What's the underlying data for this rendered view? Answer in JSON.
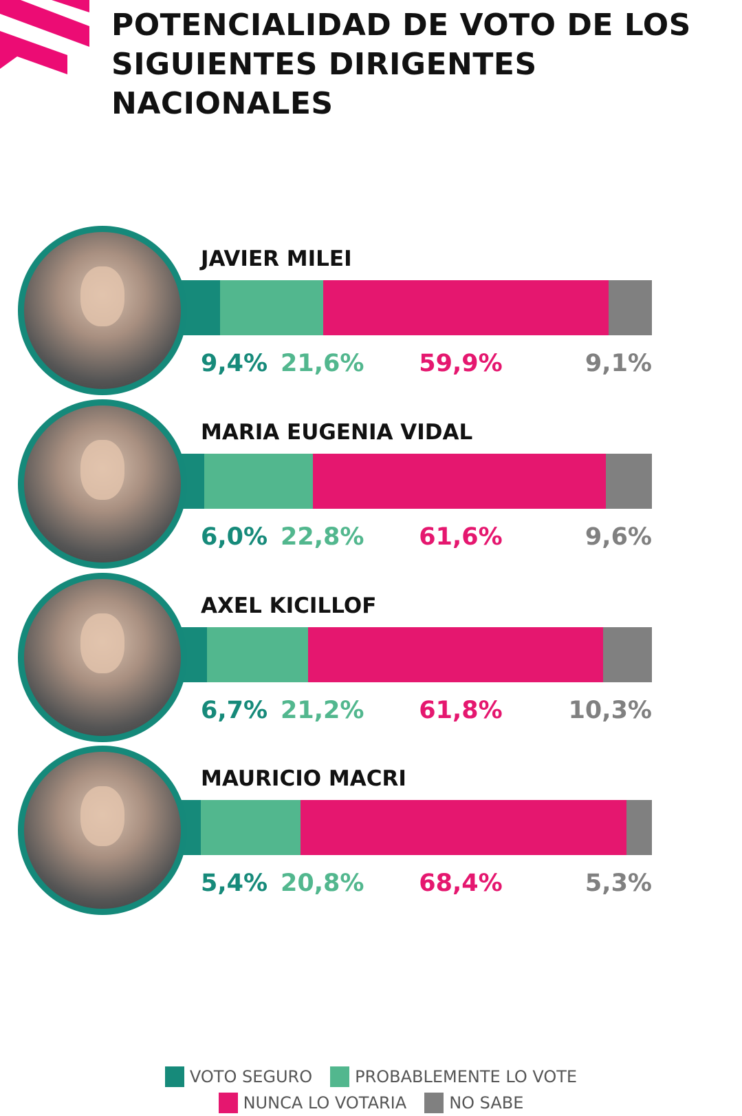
{
  "title": "POTENCIALIDAD DE VOTO DE LOS SIGUIENTES DIRIGENTES NACIONALES",
  "colors": {
    "voto_seguro": "#168a7a",
    "probablemente": "#52b78e",
    "nunca": "#e5176f",
    "no_sabe": "#808080",
    "brand": "#ec0c74"
  },
  "chart_data": {
    "type": "bar",
    "orientation": "horizontal-stacked-100",
    "title": "POTENCIALIDAD DE VOTO DE LOS SIGUIENTES DIRIGENTES NACIONALES",
    "categories": [
      "JAVIER MILEI",
      "MARIA EUGENIA VIDAL",
      "AXEL KICILLOF",
      "MAURICIO MACRI"
    ],
    "series": [
      {
        "name": "VOTO SEGURO",
        "values": [
          9.4,
          6.0,
          6.7,
          5.4
        ],
        "labels": [
          "9,4%",
          "6,0%",
          "6,7%",
          "5,4%"
        ]
      },
      {
        "name": "PROBABLEMENTE LO VOTE",
        "values": [
          21.6,
          22.8,
          21.2,
          20.8
        ],
        "labels": [
          "21,6%",
          "22,8%",
          "21,2%",
          "20,8%"
        ]
      },
      {
        "name": "NUNCA LO VOTARIA",
        "values": [
          59.9,
          61.6,
          61.8,
          68.4
        ],
        "labels": [
          "59,9%",
          "61,6%",
          "61,8%",
          "68,4%"
        ]
      },
      {
        "name": "NO SABE",
        "values": [
          9.1,
          9.6,
          10.3,
          5.3
        ],
        "labels": [
          "9,1%",
          "9,6%",
          "10,3%",
          "5,3%"
        ]
      }
    ],
    "legend_position": "bottom",
    "grid": false
  }
}
